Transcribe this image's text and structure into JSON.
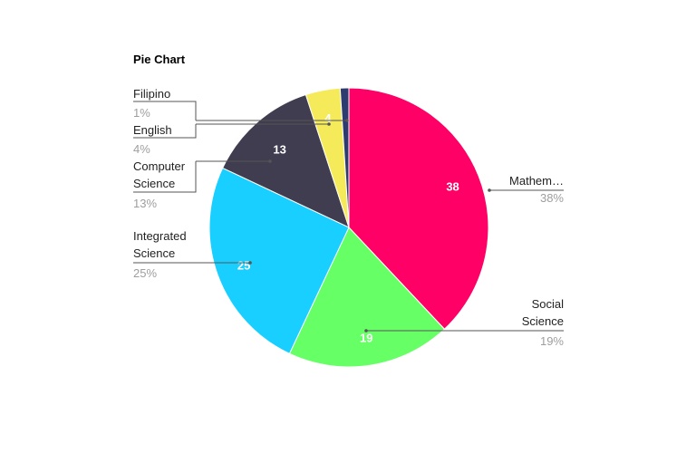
{
  "chart_data": {
    "type": "pie",
    "title": "Pie Chart",
    "start_angle_deg": 0,
    "slices": [
      {
        "name": "Mathem…",
        "value": 38,
        "percent": "38%",
        "color": "#ff0066"
      },
      {
        "name": "Social Science",
        "name_lines": [
          "Social",
          "Science"
        ],
        "value": 19,
        "percent": "19%",
        "color": "#66ff66"
      },
      {
        "name": "Integrated Science",
        "name_lines": [
          "Integrated",
          "Science"
        ],
        "value": 25,
        "percent": "25%",
        "color": "#19cfff"
      },
      {
        "name": "Computer Science",
        "name_lines": [
          "Computer",
          "Science"
        ],
        "value": 13,
        "percent": "13%",
        "color": "#403d50"
      },
      {
        "name": "English",
        "value": 4,
        "percent": "4%",
        "color": "#f5ea5a"
      },
      {
        "name": "Filipino",
        "value": 1,
        "percent": "1%",
        "color": "#2e3b6e"
      }
    ],
    "value_labels": [
      "38",
      "19",
      "25",
      "13",
      "4"
    ]
  }
}
